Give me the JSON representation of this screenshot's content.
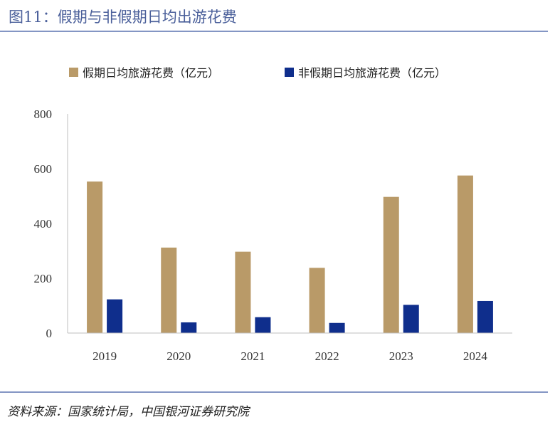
{
  "header": {
    "title": "图11：假期与非假期日均出游花费"
  },
  "footer": {
    "source": "资料来源：国家统计局，中国银河证券研究院"
  },
  "colors": {
    "holiday": "#b99a68",
    "nonholiday": "#0f2e8c",
    "rule": "#8496c4",
    "axis": "#bfbfbf"
  },
  "chart_data": {
    "type": "bar",
    "title": "",
    "xlabel": "",
    "ylabel": "",
    "categories": [
      "2019",
      "2020",
      "2021",
      "2022",
      "2023",
      "2024"
    ],
    "series": [
      {
        "name": "假期日均旅游花费（亿元）",
        "values": [
          553,
          312,
          297,
          238,
          497,
          575
        ]
      },
      {
        "name": "非假期日均旅游花费（亿元）",
        "values": [
          123,
          39,
          58,
          37,
          103,
          117
        ]
      }
    ],
    "ylim": [
      0,
      800
    ],
    "yticks": [
      "0",
      "200",
      "400",
      "600",
      "800"
    ],
    "grid": false,
    "legend_position": "top"
  }
}
